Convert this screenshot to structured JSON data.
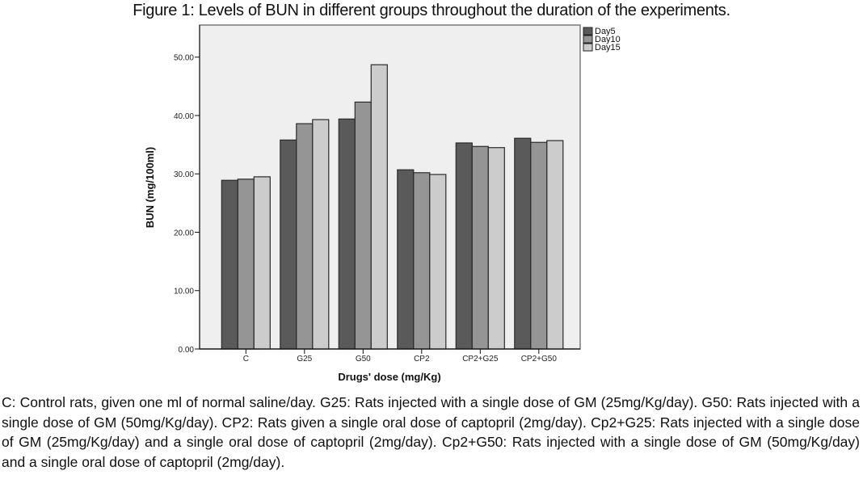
{
  "figure": {
    "title": "Figure 1: Levels of BUN in different groups throughout the duration of the experiments.",
    "caption": "C: Control rats, given one ml of normal saline/day. G25: Rats injected with a single dose of GM (25mg/Kg/day). G50: Rats injected with a single dose of GM (50mg/Kg/day). CP2: Rats given a single oral dose of captopril (2mg/day). Cp2+G25: Rats injected with a single dose of GM (25mg/Kg/day) and a single oral dose of captopril (2mg/day). Cp2+G50: Rats injected with a single dose of GM (50mg/Kg/day) and a single oral dose of captopril (2mg/day)."
  },
  "chart_data": {
    "type": "bar",
    "title": "Figure 1: Levels of BUN in different groups throughout the duration of the experiments.",
    "xlabel": "Drugs' dose (mg/Kg)",
    "ylabel": "BUN (mg/100ml)",
    "categories": [
      "C",
      "G25",
      "G50",
      "CP2",
      "CP2+G25",
      "CP2+G50"
    ],
    "series": [
      {
        "name": "Day5",
        "color": "#5a5a5a",
        "values": [
          28.9,
          35.8,
          39.4,
          30.7,
          35.3,
          36.1
        ]
      },
      {
        "name": "Day10",
        "color": "#959595",
        "values": [
          29.1,
          38.6,
          42.3,
          30.2,
          34.7,
          35.4
        ]
      },
      {
        "name": "Day15",
        "color": "#cccccc",
        "values": [
          29.5,
          39.3,
          48.7,
          29.9,
          34.5,
          35.7
        ]
      }
    ],
    "ylim": [
      0,
      55.5
    ],
    "yticks": [
      0,
      10,
      20,
      30,
      40,
      50
    ],
    "ytick_labels": [
      "0.00",
      "10.00",
      "20.00",
      "30.00",
      "40.00",
      "50.00"
    ],
    "grid": false,
    "plot_background": "#efefef",
    "legend_position": "top-right outside"
  }
}
